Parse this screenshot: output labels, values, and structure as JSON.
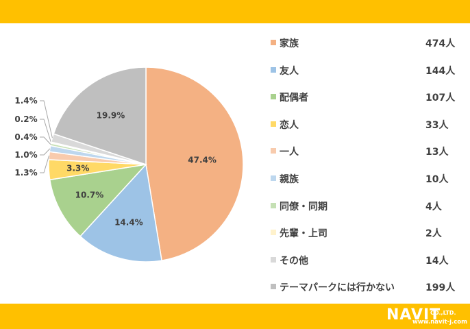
{
  "brand": {
    "logo_text": "NAVIT",
    "logo_suffix": "CO.,LTD.",
    "url": "www.navit-j.com"
  },
  "colors": {
    "band": "#FFC000"
  },
  "chart_data": {
    "type": "pie",
    "title": "",
    "categories": [
      "家族",
      "友人",
      "配偶者",
      "恋人",
      "一人",
      "親族",
      "同僚・同期",
      "先輩・上司",
      "その他",
      "テーマパークには行かない"
    ],
    "counts": [
      474,
      144,
      107,
      33,
      13,
      10,
      4,
      2,
      14,
      199
    ],
    "values": [
      47.4,
      14.4,
      10.7,
      3.3,
      1.3,
      1.0,
      0.4,
      0.2,
      1.4,
      19.9
    ],
    "percent_labels": [
      "47.4%",
      "14.4%",
      "10.7%",
      "3.3%",
      "1.3%",
      "1.0%",
      "0.4%",
      "0.2%",
      "1.4%",
      "19.9%"
    ],
    "count_labels": [
      "474人",
      "144人",
      "107人",
      "33人",
      "13人",
      "10人",
      "4人",
      "2人",
      "14人",
      "199人"
    ],
    "colors": [
      "#F4B183",
      "#9DC3E6",
      "#A9D18E",
      "#FFD966",
      "#F8CBAD",
      "#BDD7EE",
      "#C5E0B4",
      "#FFF2CC",
      "#D9D9D9",
      "#BFBFBF"
    ],
    "legend_position": "right"
  }
}
